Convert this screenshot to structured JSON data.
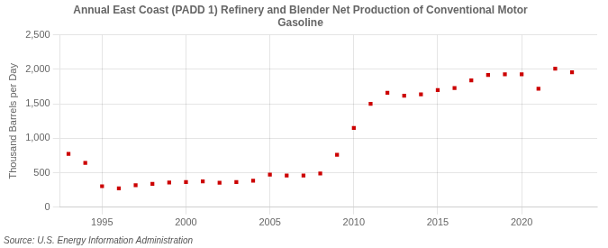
{
  "chart_data": {
    "type": "scatter",
    "title": "Annual East Coast (PADD 1) Refinery and Blender Net Production of Conventional Motor\nGasoline",
    "y_label": "Thousand Barrels per Day",
    "annotation": "Source: U.S. Energy Information Administration",
    "x": [
      1993,
      1994,
      1995,
      1996,
      1997,
      1998,
      1999,
      2000,
      2001,
      2002,
      2003,
      2004,
      2005,
      2006,
      2007,
      2008,
      2009,
      2010,
      2011,
      2012,
      2013,
      2014,
      2015,
      2016,
      2017,
      2018,
      2019,
      2020,
      2021,
      2022,
      2023
    ],
    "values": [
      775,
      645,
      305,
      275,
      320,
      340,
      360,
      365,
      375,
      355,
      365,
      385,
      475,
      460,
      460,
      490,
      760,
      1150,
      1500,
      1660,
      1620,
      1640,
      1700,
      1730,
      1840,
      1920,
      1930,
      1930,
      1720,
      2010,
      1960
    ],
    "color": "#cc0000",
    "marker": "square",
    "xlim": [
      1992.5,
      2024.5
    ],
    "xticks": [
      1995,
      2000,
      2005,
      2010,
      2015,
      2020
    ],
    "ylim": [
      0,
      2500
    ],
    "yticks": [
      0,
      500,
      {
        "value": 1000,
        "label": "1,000"
      },
      {
        "value": 1500,
        "label": "1,500"
      },
      {
        "value": 2000,
        "label": "2,000"
      },
      {
        "value": 2500,
        "label": "2,500"
      }
    ],
    "grid": true
  }
}
